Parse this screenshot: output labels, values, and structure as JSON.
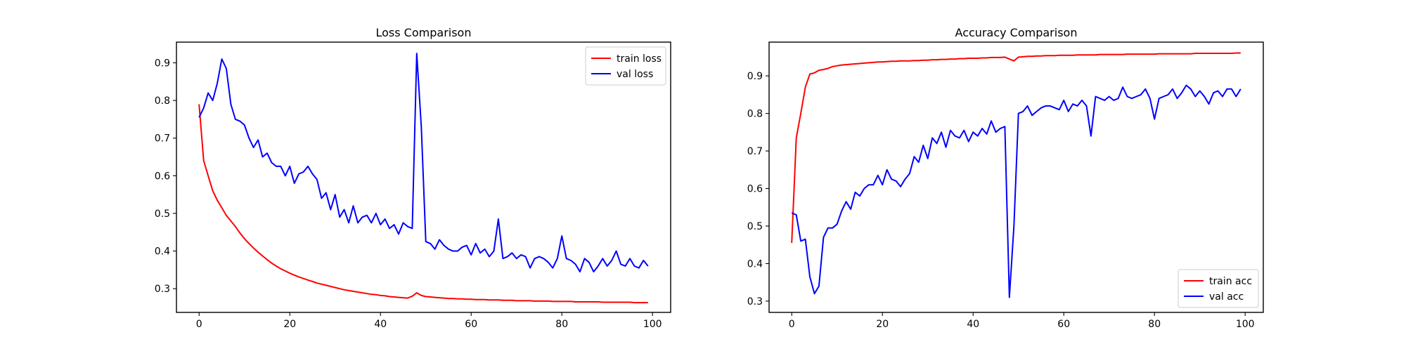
{
  "chart_data": [
    {
      "type": "line",
      "title": "Loss Comparison",
      "xlabel": "",
      "ylabel": "",
      "xlim": [
        -5,
        104
      ],
      "ylim": [
        0.237,
        0.955
      ],
      "xticks": [
        0,
        20,
        40,
        60,
        80,
        100
      ],
      "yticks": [
        0.3,
        0.4,
        0.5,
        0.6,
        0.7,
        0.8,
        0.9
      ],
      "legend_position": "top-right",
      "grid": false,
      "series": [
        {
          "name": "train loss",
          "color": "#ff0000",
          "x": [
            0,
            1,
            2,
            3,
            4,
            5,
            6,
            7,
            8,
            9,
            10,
            11,
            12,
            13,
            14,
            15,
            16,
            17,
            18,
            19,
            20,
            21,
            22,
            23,
            24,
            25,
            26,
            27,
            28,
            29,
            30,
            31,
            32,
            33,
            34,
            35,
            36,
            37,
            38,
            39,
            40,
            41,
            42,
            43,
            44,
            45,
            46,
            47,
            48,
            49,
            50,
            51,
            52,
            53,
            54,
            55,
            56,
            57,
            58,
            59,
            60,
            61,
            62,
            63,
            64,
            65,
            66,
            67,
            68,
            69,
            70,
            71,
            72,
            73,
            74,
            75,
            76,
            77,
            78,
            79,
            80,
            81,
            82,
            83,
            84,
            85,
            86,
            87,
            88,
            89,
            90,
            91,
            92,
            93,
            94,
            95,
            96,
            97,
            98,
            99
          ],
          "y": [
            0.79,
            0.64,
            0.6,
            0.56,
            0.535,
            0.515,
            0.495,
            0.48,
            0.465,
            0.448,
            0.433,
            0.42,
            0.408,
            0.397,
            0.387,
            0.377,
            0.368,
            0.36,
            0.353,
            0.347,
            0.341,
            0.336,
            0.331,
            0.327,
            0.323,
            0.319,
            0.315,
            0.312,
            0.309,
            0.306,
            0.303,
            0.3,
            0.297,
            0.295,
            0.293,
            0.291,
            0.289,
            0.287,
            0.285,
            0.284,
            0.282,
            0.281,
            0.279,
            0.278,
            0.277,
            0.276,
            0.275,
            0.28,
            0.289,
            0.282,
            0.279,
            0.278,
            0.277,
            0.276,
            0.275,
            0.274,
            0.274,
            0.273,
            0.273,
            0.272,
            0.272,
            0.271,
            0.271,
            0.271,
            0.27,
            0.27,
            0.27,
            0.269,
            0.269,
            0.269,
            0.268,
            0.268,
            0.268,
            0.268,
            0.267,
            0.267,
            0.267,
            0.267,
            0.266,
            0.266,
            0.266,
            0.266,
            0.266,
            0.265,
            0.265,
            0.265,
            0.265,
            0.265,
            0.265,
            0.264,
            0.264,
            0.264,
            0.264,
            0.264,
            0.264,
            0.264,
            0.263,
            0.263,
            0.263,
            0.263
          ]
        },
        {
          "name": "val loss",
          "color": "#0000ff",
          "x": [
            0,
            1,
            2,
            3,
            4,
            5,
            6,
            7,
            8,
            9,
            10,
            11,
            12,
            13,
            14,
            15,
            16,
            17,
            18,
            19,
            20,
            21,
            22,
            23,
            24,
            25,
            26,
            27,
            28,
            29,
            30,
            31,
            32,
            33,
            34,
            35,
            36,
            37,
            38,
            39,
            40,
            41,
            42,
            43,
            44,
            45,
            46,
            47,
            48,
            49,
            50,
            51,
            52,
            53,
            54,
            55,
            56,
            57,
            58,
            59,
            60,
            61,
            62,
            63,
            64,
            65,
            66,
            67,
            68,
            69,
            70,
            71,
            72,
            73,
            74,
            75,
            76,
            77,
            78,
            79,
            80,
            81,
            82,
            83,
            84,
            85,
            86,
            87,
            88,
            89,
            90,
            91,
            92,
            93,
            94,
            95,
            96,
            97,
            98,
            99
          ],
          "y": [
            0.755,
            0.78,
            0.82,
            0.8,
            0.845,
            0.91,
            0.885,
            0.79,
            0.75,
            0.745,
            0.735,
            0.7,
            0.675,
            0.695,
            0.65,
            0.66,
            0.635,
            0.625,
            0.625,
            0.6,
            0.625,
            0.58,
            0.605,
            0.61,
            0.625,
            0.605,
            0.59,
            0.54,
            0.555,
            0.51,
            0.55,
            0.49,
            0.51,
            0.475,
            0.52,
            0.475,
            0.49,
            0.495,
            0.475,
            0.5,
            0.47,
            0.485,
            0.46,
            0.47,
            0.445,
            0.475,
            0.465,
            0.46,
            0.925,
            0.73,
            0.425,
            0.42,
            0.405,
            0.43,
            0.415,
            0.405,
            0.4,
            0.4,
            0.41,
            0.415,
            0.39,
            0.42,
            0.395,
            0.405,
            0.385,
            0.4,
            0.485,
            0.38,
            0.385,
            0.395,
            0.38,
            0.39,
            0.385,
            0.355,
            0.38,
            0.385,
            0.38,
            0.37,
            0.355,
            0.38,
            0.44,
            0.38,
            0.375,
            0.365,
            0.345,
            0.38,
            0.37,
            0.345,
            0.36,
            0.38,
            0.36,
            0.375,
            0.4,
            0.365,
            0.36,
            0.38,
            0.36,
            0.355,
            0.375,
            0.36
          ]
        }
      ]
    },
    {
      "type": "line",
      "title": "Accuracy Comparison",
      "xlabel": "",
      "ylabel": "",
      "xlim": [
        -5,
        104
      ],
      "ylim": [
        0.27,
        0.99
      ],
      "xticks": [
        0,
        20,
        40,
        60,
        80,
        100
      ],
      "yticks": [
        0.3,
        0.4,
        0.5,
        0.6,
        0.7,
        0.8,
        0.9
      ],
      "legend_position": "bottom-right",
      "grid": false,
      "series": [
        {
          "name": "train acc",
          "color": "#ff0000",
          "x": [
            0,
            1,
            2,
            3,
            4,
            5,
            6,
            7,
            8,
            9,
            10,
            11,
            12,
            13,
            14,
            15,
            16,
            17,
            18,
            19,
            20,
            21,
            22,
            23,
            24,
            25,
            26,
            27,
            28,
            29,
            30,
            31,
            32,
            33,
            34,
            35,
            36,
            37,
            38,
            39,
            40,
            41,
            42,
            43,
            44,
            45,
            46,
            47,
            48,
            49,
            50,
            51,
            52,
            53,
            54,
            55,
            56,
            57,
            58,
            59,
            60,
            61,
            62,
            63,
            64,
            65,
            66,
            67,
            68,
            69,
            70,
            71,
            72,
            73,
            74,
            75,
            76,
            77,
            78,
            79,
            80,
            81,
            82,
            83,
            84,
            85,
            86,
            87,
            88,
            89,
            90,
            91,
            92,
            93,
            94,
            95,
            96,
            97,
            98,
            99
          ],
          "y": [
            0.455,
            0.735,
            0.8,
            0.87,
            0.905,
            0.908,
            0.915,
            0.917,
            0.92,
            0.925,
            0.927,
            0.929,
            0.93,
            0.931,
            0.932,
            0.933,
            0.934,
            0.935,
            0.936,
            0.937,
            0.937,
            0.938,
            0.939,
            0.939,
            0.94,
            0.94,
            0.94,
            0.941,
            0.941,
            0.942,
            0.942,
            0.943,
            0.943,
            0.944,
            0.944,
            0.945,
            0.945,
            0.946,
            0.946,
            0.947,
            0.947,
            0.947,
            0.948,
            0.948,
            0.949,
            0.949,
            0.949,
            0.95,
            0.945,
            0.94,
            0.95,
            0.951,
            0.952,
            0.952,
            0.953,
            0.953,
            0.954,
            0.954,
            0.954,
            0.955,
            0.955,
            0.955,
            0.955,
            0.956,
            0.956,
            0.956,
            0.956,
            0.956,
            0.957,
            0.957,
            0.957,
            0.957,
            0.957,
            0.957,
            0.958,
            0.958,
            0.958,
            0.958,
            0.958,
            0.958,
            0.958,
            0.959,
            0.959,
            0.959,
            0.959,
            0.959,
            0.959,
            0.959,
            0.959,
            0.96,
            0.96,
            0.96,
            0.96,
            0.96,
            0.96,
            0.96,
            0.96,
            0.96,
            0.961,
            0.961
          ]
        },
        {
          "name": "val acc",
          "color": "#0000ff",
          "x": [
            0,
            1,
            2,
            3,
            4,
            5,
            6,
            7,
            8,
            9,
            10,
            11,
            12,
            13,
            14,
            15,
            16,
            17,
            18,
            19,
            20,
            21,
            22,
            23,
            24,
            25,
            26,
            27,
            28,
            29,
            30,
            31,
            32,
            33,
            34,
            35,
            36,
            37,
            38,
            39,
            40,
            41,
            42,
            43,
            44,
            45,
            46,
            47,
            48,
            49,
            50,
            51,
            52,
            53,
            54,
            55,
            56,
            57,
            58,
            59,
            60,
            61,
            62,
            63,
            64,
            65,
            66,
            67,
            68,
            69,
            70,
            71,
            72,
            73,
            74,
            75,
            76,
            77,
            78,
            79,
            80,
            81,
            82,
            83,
            84,
            85,
            86,
            87,
            88,
            89,
            90,
            91,
            92,
            93,
            94,
            95,
            96,
            97,
            98,
            99
          ],
          "y": [
            0.535,
            0.53,
            0.46,
            0.465,
            0.365,
            0.32,
            0.34,
            0.47,
            0.495,
            0.495,
            0.505,
            0.54,
            0.565,
            0.545,
            0.59,
            0.58,
            0.6,
            0.61,
            0.61,
            0.635,
            0.61,
            0.65,
            0.625,
            0.62,
            0.605,
            0.625,
            0.64,
            0.685,
            0.67,
            0.715,
            0.68,
            0.735,
            0.72,
            0.75,
            0.71,
            0.755,
            0.74,
            0.735,
            0.755,
            0.725,
            0.75,
            0.74,
            0.76,
            0.745,
            0.78,
            0.75,
            0.76,
            0.765,
            0.31,
            0.5,
            0.8,
            0.805,
            0.82,
            0.795,
            0.805,
            0.815,
            0.82,
            0.82,
            0.815,
            0.81,
            0.835,
            0.805,
            0.825,
            0.82,
            0.835,
            0.82,
            0.74,
            0.845,
            0.84,
            0.835,
            0.845,
            0.835,
            0.84,
            0.87,
            0.845,
            0.84,
            0.845,
            0.85,
            0.865,
            0.84,
            0.785,
            0.84,
            0.845,
            0.85,
            0.865,
            0.84,
            0.855,
            0.875,
            0.865,
            0.845,
            0.86,
            0.845,
            0.825,
            0.855,
            0.86,
            0.845,
            0.865,
            0.865,
            0.845,
            0.865
          ]
        }
      ]
    }
  ]
}
